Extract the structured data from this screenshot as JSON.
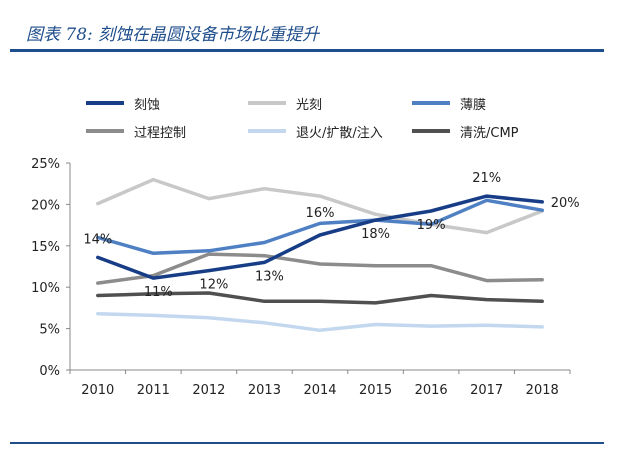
{
  "figure": {
    "title": "图表 78:  刻蚀在晶圆设备市场比重提升"
  },
  "chart_data": {
    "type": "line",
    "title": "",
    "xlabel": "",
    "ylabel": "",
    "x": [
      "2010",
      "2011",
      "2012",
      "2013",
      "2014",
      "2015",
      "2016",
      "2017",
      "2018"
    ],
    "ylim": [
      0,
      25
    ],
    "yticks": [
      "0%",
      "5%",
      "10%",
      "15%",
      "20%",
      "25%"
    ],
    "grid": false,
    "legend_position": "top",
    "series": [
      {
        "name": "刻蚀",
        "color": "#173d86",
        "values": [
          13.6,
          11.1,
          12.0,
          13.0,
          16.3,
          18.1,
          19.2,
          21.0,
          20.3
        ]
      },
      {
        "name": "光刻",
        "color": "#c8c8c8",
        "values": [
          20.1,
          23.0,
          20.7,
          21.9,
          21.0,
          18.8,
          17.6,
          16.6,
          19.2
        ]
      },
      {
        "name": "薄膜",
        "color": "#4f80c4",
        "values": [
          16.0,
          14.1,
          14.4,
          15.4,
          17.7,
          18.1,
          17.6,
          20.5,
          19.3
        ]
      },
      {
        "name": "过程控制",
        "color": "#8c8c8c",
        "values": [
          10.5,
          11.4,
          14.0,
          13.8,
          12.8,
          12.6,
          12.6,
          10.8,
          10.9
        ]
      },
      {
        "name": "退火/扩散/注入",
        "color": "#c3d8ef",
        "values": [
          6.8,
          6.6,
          6.3,
          5.7,
          4.8,
          5.5,
          5.3,
          5.4,
          5.2
        ]
      },
      {
        "name": "清洗/CMP",
        "color": "#505050",
        "values": [
          9.0,
          9.2,
          9.3,
          8.3,
          8.3,
          8.1,
          9.0,
          8.5,
          8.3
        ]
      }
    ],
    "data_labels": [
      {
        "series": "刻蚀",
        "index": 0,
        "text": "14%"
      },
      {
        "series": "刻蚀",
        "index": 1,
        "text": "11%"
      },
      {
        "series": "刻蚀",
        "index": 2,
        "text": "12%"
      },
      {
        "series": "刻蚀",
        "index": 3,
        "text": "13%"
      },
      {
        "series": "刻蚀",
        "index": 4,
        "text": "16%"
      },
      {
        "series": "刻蚀",
        "index": 5,
        "text": "18%"
      },
      {
        "series": "刻蚀",
        "index": 6,
        "text": "19%"
      },
      {
        "series": "刻蚀",
        "index": 7,
        "text": "21%"
      },
      {
        "series": "刻蚀",
        "index": 8,
        "text": "20%"
      }
    ]
  }
}
